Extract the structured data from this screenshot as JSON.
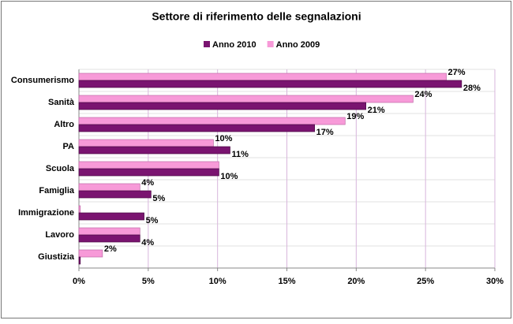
{
  "chart_data": {
    "type": "hbar",
    "title": "Settore di riferimento delle segnalazioni",
    "categories": [
      "Consumerismo",
      "Sanità",
      "Altro",
      "PA",
      "Scuola",
      "Famiglia",
      "Immigrazione",
      "Lavoro",
      "Giustizia"
    ],
    "series": [
      {
        "name": "Anno 2010",
        "color": "#7a1470",
        "values": [
          27.6,
          20.7,
          17.0,
          10.9,
          10.1,
          5.2,
          4.7,
          4.4,
          0.1
        ],
        "value_labels": [
          "28%",
          "21%",
          "17%",
          "11%",
          "10%",
          "5%",
          "5%",
          "4%",
          null
        ]
      },
      {
        "name": "Anno 2009",
        "color": "#f79ad8",
        "values": [
          26.5,
          24.1,
          19.2,
          9.7,
          10.1,
          4.4,
          0.1,
          4.4,
          1.7
        ],
        "value_labels": [
          "27%",
          "24%",
          "19%",
          "10%",
          null,
          "4%",
          null,
          null,
          "2%"
        ]
      }
    ],
    "xlim": [
      0,
      30
    ],
    "xticks": [
      {
        "value": 0,
        "label": "0%"
      },
      {
        "value": 5,
        "label": "5%"
      },
      {
        "value": 10,
        "label": "10%"
      },
      {
        "value": 15,
        "label": "15%"
      },
      {
        "value": 20,
        "label": "20%"
      },
      {
        "value": 25,
        "label": "25%"
      },
      {
        "value": 30,
        "label": "30%"
      }
    ],
    "grid": true
  }
}
